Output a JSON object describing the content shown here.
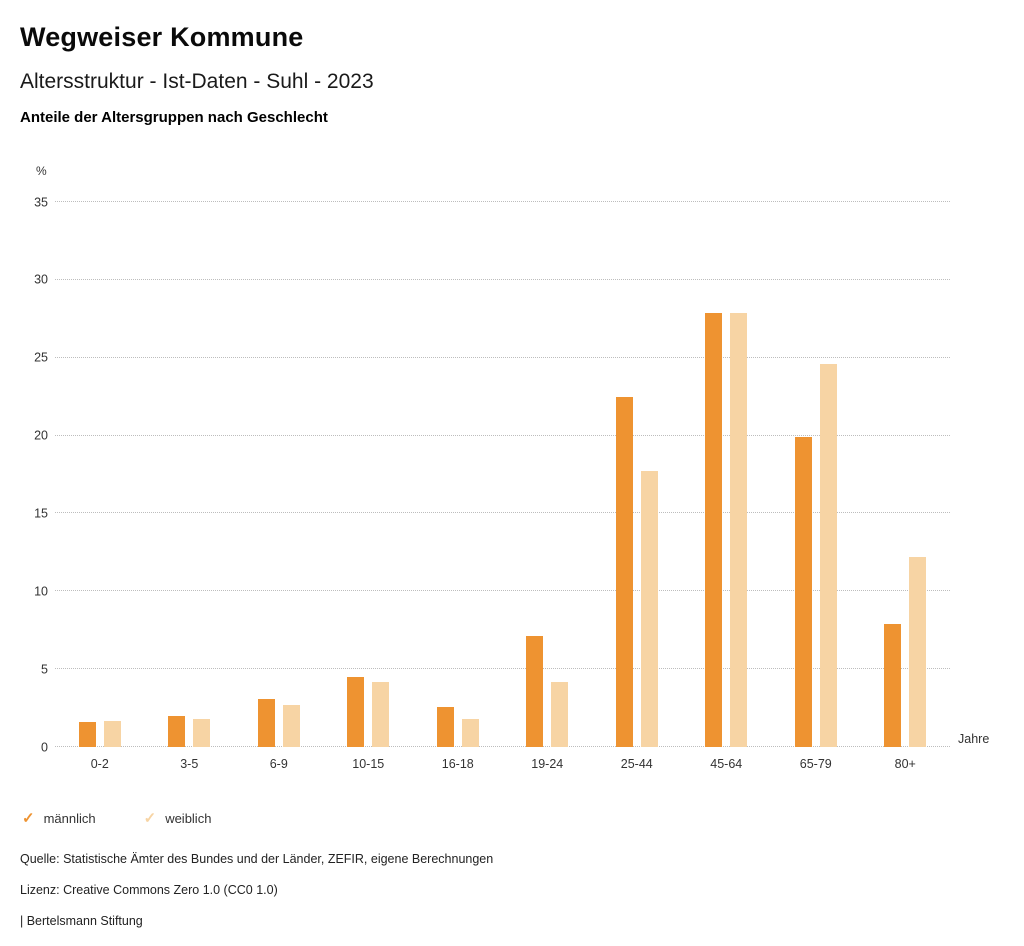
{
  "header": {
    "title": "Wegweiser Kommune",
    "subtitle": "Altersstruktur - Ist-Daten - Suhl - 2023",
    "chart_heading": "Anteile der Altersgruppen nach Geschlecht"
  },
  "chart_data": {
    "type": "bar",
    "categories": [
      "0-2",
      "3-5",
      "6-9",
      "10-15",
      "16-18",
      "19-24",
      "25-44",
      "45-64",
      "65-79",
      "80+"
    ],
    "series": [
      {
        "name": "männlich",
        "color": "#ee9331",
        "values": [
          1.6,
          2.0,
          3.1,
          4.5,
          2.6,
          7.1,
          22.5,
          27.9,
          19.9,
          7.9
        ]
      },
      {
        "name": "weiblich",
        "color": "#f7d4a4",
        "values": [
          1.7,
          1.8,
          2.7,
          4.2,
          1.8,
          4.2,
          17.7,
          27.9,
          24.6,
          12.2
        ]
      }
    ],
    "title": "Anteile der Altersgruppen nach Geschlecht",
    "ylabel": "%",
    "xlabel": "Jahre",
    "ylim": [
      0,
      35
    ],
    "yticks": [
      0,
      5,
      10,
      15,
      20,
      25,
      30,
      35
    ],
    "grid": true,
    "legend_position": "bottom"
  },
  "legend": {
    "check_icon": "✓",
    "items": [
      {
        "label": "männlich",
        "color": "#ee9331"
      },
      {
        "label": "weiblich",
        "color": "#f7d4a4"
      }
    ]
  },
  "footer": {
    "source": "Quelle: Statistische Ämter des Bundes und der Länder, ZEFIR, eigene Berechnungen",
    "license": "Lizenz: Creative Commons Zero 1.0 (CC0 1.0)",
    "attribution": "| Bertelsmann Stiftung"
  }
}
